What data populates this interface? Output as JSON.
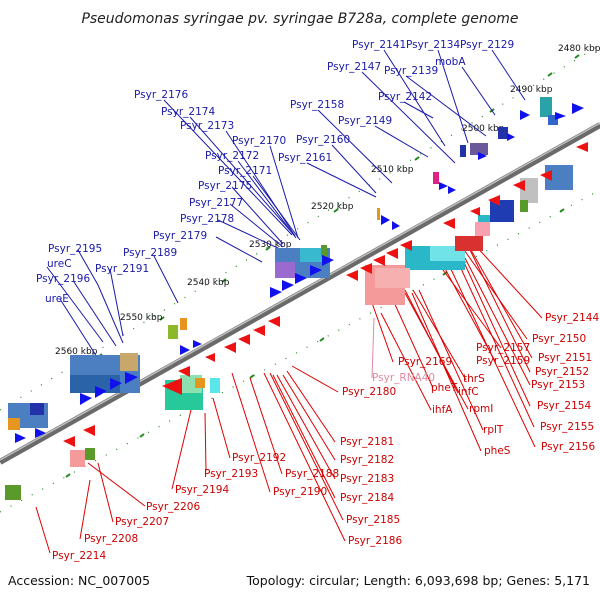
{
  "title": "Pseudomonas syringae pv. syringae B728a, complete genome",
  "accession": "Accession: NC_007005",
  "summary": "Topology: circular; Length: 6,093,698 bp; Genes: 5,171",
  "scale_labels": [
    "2480 kbp",
    "2490 kbp",
    "2500 kbp",
    "2510 kbp",
    "2520 kbp",
    "2530 kbp",
    "2540 kbp",
    "2550 kbp",
    "2560 kbp"
  ],
  "top_gene_labels": [
    "Psyr_2141",
    "Psyr_2134",
    "Psyr_2129",
    "Psyr_2147",
    "mobA",
    "Psyr_2139",
    "Psyr_2142",
    "Psyr_2176",
    "Psyr_2174",
    "Psyr_2158",
    "Psyr_2173",
    "Psyr_2149",
    "Psyr_2170",
    "Psyr_2160",
    "Psyr_2172",
    "Psyr_2161",
    "Psyr_2171",
    "Psyr_2175",
    "Psyr_2177",
    "Psyr_2178",
    "Psyr_2179",
    "Psyr_2189",
    "Psyr_2195",
    "ureC",
    "Psyr_2191",
    "Psyr_2196",
    "ureE"
  ],
  "bottom_gene_labels": [
    "Psyr_2144",
    "Psyr_2150",
    "Psyr_2157",
    "Psyr_2151",
    "Psyr_2159",
    "Psyr_2152",
    "Psyr_2153",
    "Psyr_2154",
    "Psyr_2155",
    "Psyr_2156",
    "Psyr_2169",
    "thrS",
    "infC",
    "pheT",
    "rpmI",
    "ihfA",
    "rplT",
    "pheS",
    "Psyr_2180",
    "Psyr_2181",
    "Psyr_2182",
    "Psyr_2183",
    "Psyr_2184",
    "Psyr_2185",
    "Psyr_2186",
    "Psyr_2188",
    "Psyr_2190",
    "Psyr_2192",
    "Psyr_2193",
    "Psyr_2194",
    "Psyr_2206",
    "Psyr_2207",
    "Psyr_2208",
    "Psyr_2214"
  ],
  "rna_labels": [
    "Psyr_RNA40"
  ],
  "colors": {
    "top_label": "#1a1aaa",
    "bottom_label": "#cc0000",
    "rna_label": "#e08aa0",
    "forward_arrow": "#1111ee",
    "reverse_arrow": "#ee1111",
    "backbone": "#6a6a6a",
    "tick": "#1e8a1e"
  }
}
